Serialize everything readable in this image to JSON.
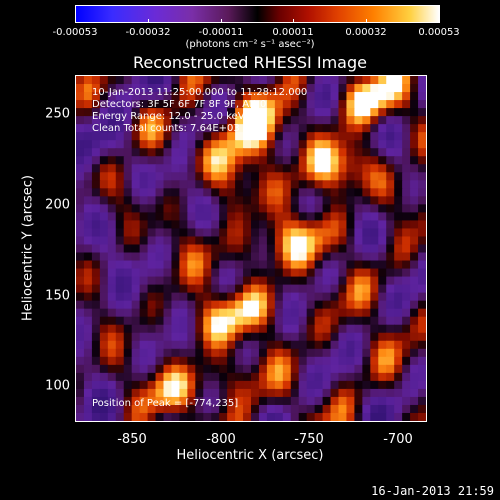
{
  "colorbar": {
    "ticks": [
      "-0.00053",
      "-0.00032",
      "-0.00011",
      "0.00011",
      "0.00032",
      "0.00053"
    ],
    "units": "(photons cm⁻² s⁻¹ asec⁻²)"
  },
  "title": "Reconstructed RHESSI Image",
  "annotations": {
    "time_range": "10-Jan-2013 11:25:00.000 to 11:28:12.000",
    "detectors": "Detectors: 3F 5F 6F 7F 8F 9F, Att 0",
    "energy": "Energy Range: 12.0 - 25.0 keV",
    "clean": "Clean     Total counts: 7.64E+03",
    "peak": "Position of Peak = [-774,235]"
  },
  "axes": {
    "xlabel": "Heliocentric X (arcsec)",
    "ylabel": "Heliocentric Y (arcsec)",
    "xticks": [
      "-850",
      "-800",
      "-750",
      "-700"
    ],
    "yticks": [
      "250",
      "200",
      "150",
      "100"
    ]
  },
  "footer": {
    "timestamp": "16-Jan-2013 21:59"
  }
}
